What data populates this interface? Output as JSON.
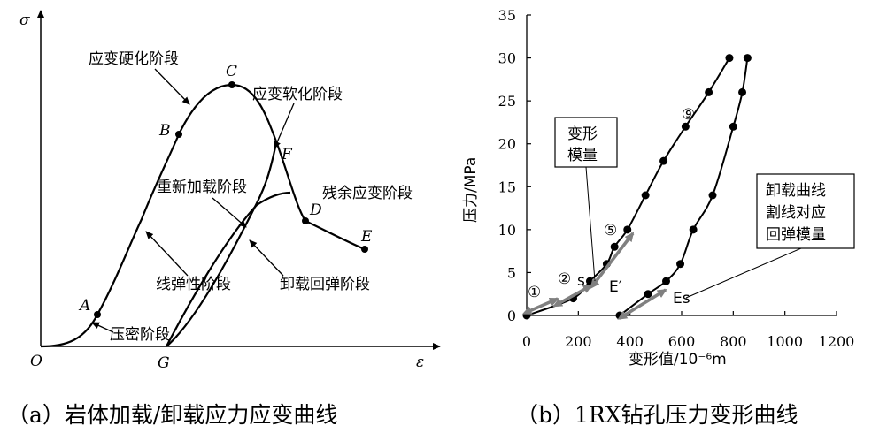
{
  "chart_data": [
    {
      "type": "line",
      "caption": "（a）岩体加载/卸载应力应变曲线",
      "ylabel": "σ",
      "xlabel": "ε",
      "points": {
        "O": "O",
        "A": "A",
        "B": "B",
        "C": "C",
        "D": "D",
        "E": "E",
        "F": "F",
        "G": "G"
      },
      "stage_labels": {
        "hardening": "应变硬化阶段",
        "softening": "应变软化阶段",
        "reloading": "重新加载阶段",
        "residual": "残余应变阶段",
        "linear_elastic": "线弹性阶段",
        "unload_rebound": "卸载回弹阶段",
        "compaction": "压密阶段"
      }
    },
    {
      "type": "line",
      "caption": "（b）1RX钻孔压力变形曲线",
      "xlabel": "变形值/10⁻⁶m",
      "ylabel": "压力/MPa",
      "xlim": [
        0,
        1200
      ],
      "ylim": [
        0,
        35
      ],
      "xticks": [
        "0",
        "200",
        "400",
        "600",
        "800",
        "1000",
        "1200"
      ],
      "yticks": [
        "0",
        "5",
        "10",
        "15",
        "20",
        "25",
        "30",
        "35"
      ],
      "series": [
        {
          "points": [
            [
              0,
              0
            ],
            [
              180,
              2
            ],
            [
              245,
              4
            ],
            [
              310,
              6
            ],
            [
              340,
              8
            ],
            [
              390,
              10
            ],
            [
              460,
              14
            ],
            [
              530,
              18
            ],
            [
              615,
              22
            ],
            [
              705,
              26
            ],
            [
              785,
              30
            ]
          ]
        },
        {
          "points": [
            [
              360,
              0
            ],
            [
              470,
              2.5
            ],
            [
              540,
              4
            ],
            [
              595,
              6
            ],
            [
              645,
              10
            ],
            [
              720,
              14
            ],
            [
              800,
              22
            ],
            [
              835,
              26
            ],
            [
              855,
              30
            ]
          ]
        }
      ],
      "cycle_markers": [
        "①",
        "②",
        "⑤",
        "⑨"
      ],
      "annotations": {
        "modulus_box": [
          "变形",
          "模量"
        ],
        "unloading_box": [
          "卸载曲线",
          "割线对应",
          "回弹模量"
        ],
        "e_prime": "E′",
        "es": "Es",
        "s_mark": "s"
      }
    }
  ]
}
